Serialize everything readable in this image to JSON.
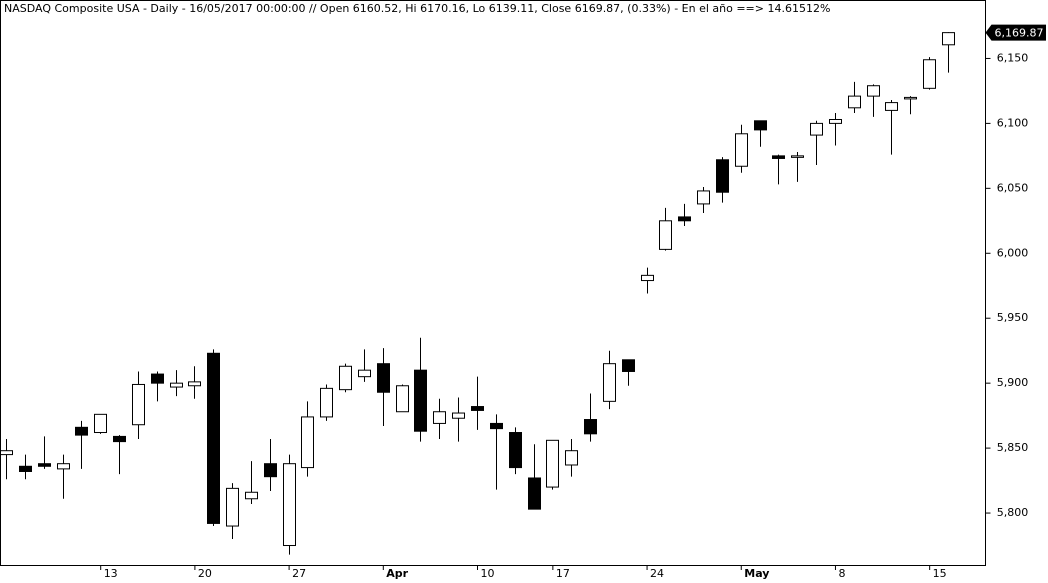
{
  "chart_data": {
    "type": "candlestick",
    "title": "NASDAQ Composite USA - Daily - 16/05/2017 00:00:00 // Open 6160.52, Hi 6170.16, Lo 6139.11, Close 6169.87, (0.33%) - En el año ==> 14.61512%",
    "categories": [
      null,
      null,
      null,
      null,
      null,
      "13",
      null,
      null,
      null,
      null,
      "20",
      null,
      null,
      null,
      null,
      "27",
      null,
      null,
      null,
      null,
      "Apr",
      null,
      null,
      null,
      null,
      "10",
      null,
      null,
      null,
      "17",
      null,
      null,
      null,
      null,
      "24",
      null,
      null,
      null,
      null,
      "May",
      null,
      null,
      null,
      null,
      "8",
      null,
      null,
      null,
      null,
      "15",
      null
    ],
    "series": [
      {
        "name": "Open",
        "values": [
          5845,
          5836,
          5838,
          5834,
          5866,
          5862,
          5859,
          5868,
          5907,
          5897,
          5898,
          5923,
          5790,
          5811,
          5838,
          5775,
          5835,
          5874,
          5895,
          5905,
          5915,
          5878,
          5910,
          5869,
          5873,
          5882,
          5869,
          5862,
          5827,
          5820,
          5837,
          5872,
          5886,
          5918,
          5979,
          6003,
          6028,
          6038,
          6072,
          6067,
          6102,
          6075,
          6074,
          6091,
          6100,
          6112,
          6121,
          6110,
          6119,
          6127,
          6160.52
        ]
      },
      {
        "name": "High",
        "values": [
          5857,
          5845,
          5859,
          5845,
          5871,
          5876,
          5860,
          5909,
          5909,
          5910,
          5913,
          5926,
          5823,
          5840,
          5857,
          5845,
          5886,
          5899,
          5915,
          5926,
          5927,
          5899,
          5935,
          5888,
          5889,
          5905,
          5876,
          5866,
          5853,
          5856,
          5857,
          5892,
          5925,
          5918,
          5989,
          6035,
          6038,
          6051,
          6074,
          6099,
          6102,
          6076,
          6078,
          6102,
          6108,
          6132,
          6130,
          6118,
          6121,
          6151,
          6170.16
        ]
      },
      {
        "name": "Low",
        "values": [
          5826,
          5826,
          5834,
          5811,
          5834,
          5861,
          5830,
          5857,
          5886,
          5890,
          5888,
          5790,
          5780,
          5807,
          5817,
          5768,
          5828,
          5871,
          5893,
          5901,
          5867,
          5878,
          5855,
          5857,
          5855,
          5864,
          5818,
          5830,
          5803,
          5818,
          5828,
          5855,
          5880,
          5898,
          5969,
          6002,
          6021,
          6031,
          6039,
          6062,
          6082,
          6053,
          6055,
          6068,
          6083,
          6108,
          6105,
          6076,
          6107,
          6126,
          6139.11
        ]
      },
      {
        "name": "Close",
        "values": [
          5848,
          5832,
          5836,
          5838,
          5860,
          5876,
          5855,
          5899,
          5900,
          5900,
          5901,
          5792,
          5819,
          5816,
          5828,
          5838,
          5874,
          5896,
          5913,
          5910,
          5893,
          5898,
          5863,
          5878,
          5877,
          5879,
          5865,
          5835,
          5803,
          5856,
          5848,
          5861,
          5915,
          5909,
          5983,
          6025,
          6025,
          6048,
          6047,
          6092,
          6095,
          6073,
          6075,
          6100,
          6103,
          6121,
          6129,
          6116,
          6120,
          6149,
          6169.87
        ]
      }
    ],
    "last_price": {
      "value": 6169.87,
      "label": "6,169.87"
    },
    "ylim": [
      5760,
      6195
    ],
    "yticks": [
      {
        "value": 5800,
        "label": "5,800"
      },
      {
        "value": 5850,
        "label": "5,850"
      },
      {
        "value": 5900,
        "label": "5,900"
      },
      {
        "value": 5950,
        "label": "5,950"
      },
      {
        "value": 6000,
        "label": "6,000"
      },
      {
        "value": 6050,
        "label": "6,050"
      },
      {
        "value": 6100,
        "label": "6,100"
      },
      {
        "value": 6150,
        "label": "6,150"
      }
    ]
  }
}
